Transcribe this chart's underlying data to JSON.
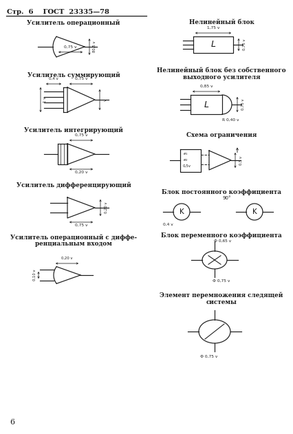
{
  "bg_color": "#ffffff",
  "line_color": "#1a1a1a",
  "header_text": "Стр.  6    ГОСТ  23335—78",
  "footer_num": "6",
  "title_left": [
    "Усилитель операционный",
    "Усилитель суммирующий",
    "Усилитель интегрирующий",
    "Усилитель дифференцирующий",
    "Усилитель операционный с диффе-"
  ],
  "title_left2": [
    "",
    "",
    "",
    "",
    "ренциальным входом"
  ],
  "title_right": [
    "Нелинейный блок",
    "Нелинейный блок без собственного",
    "Схема ограничения",
    "Блок постоянного коэффициента",
    "Блок переменного коэффициента",
    "Элемент перемножения следящей"
  ],
  "title_right2": [
    "",
    "выходного усилителя",
    "",
    "",
    "",
    "системы"
  ]
}
